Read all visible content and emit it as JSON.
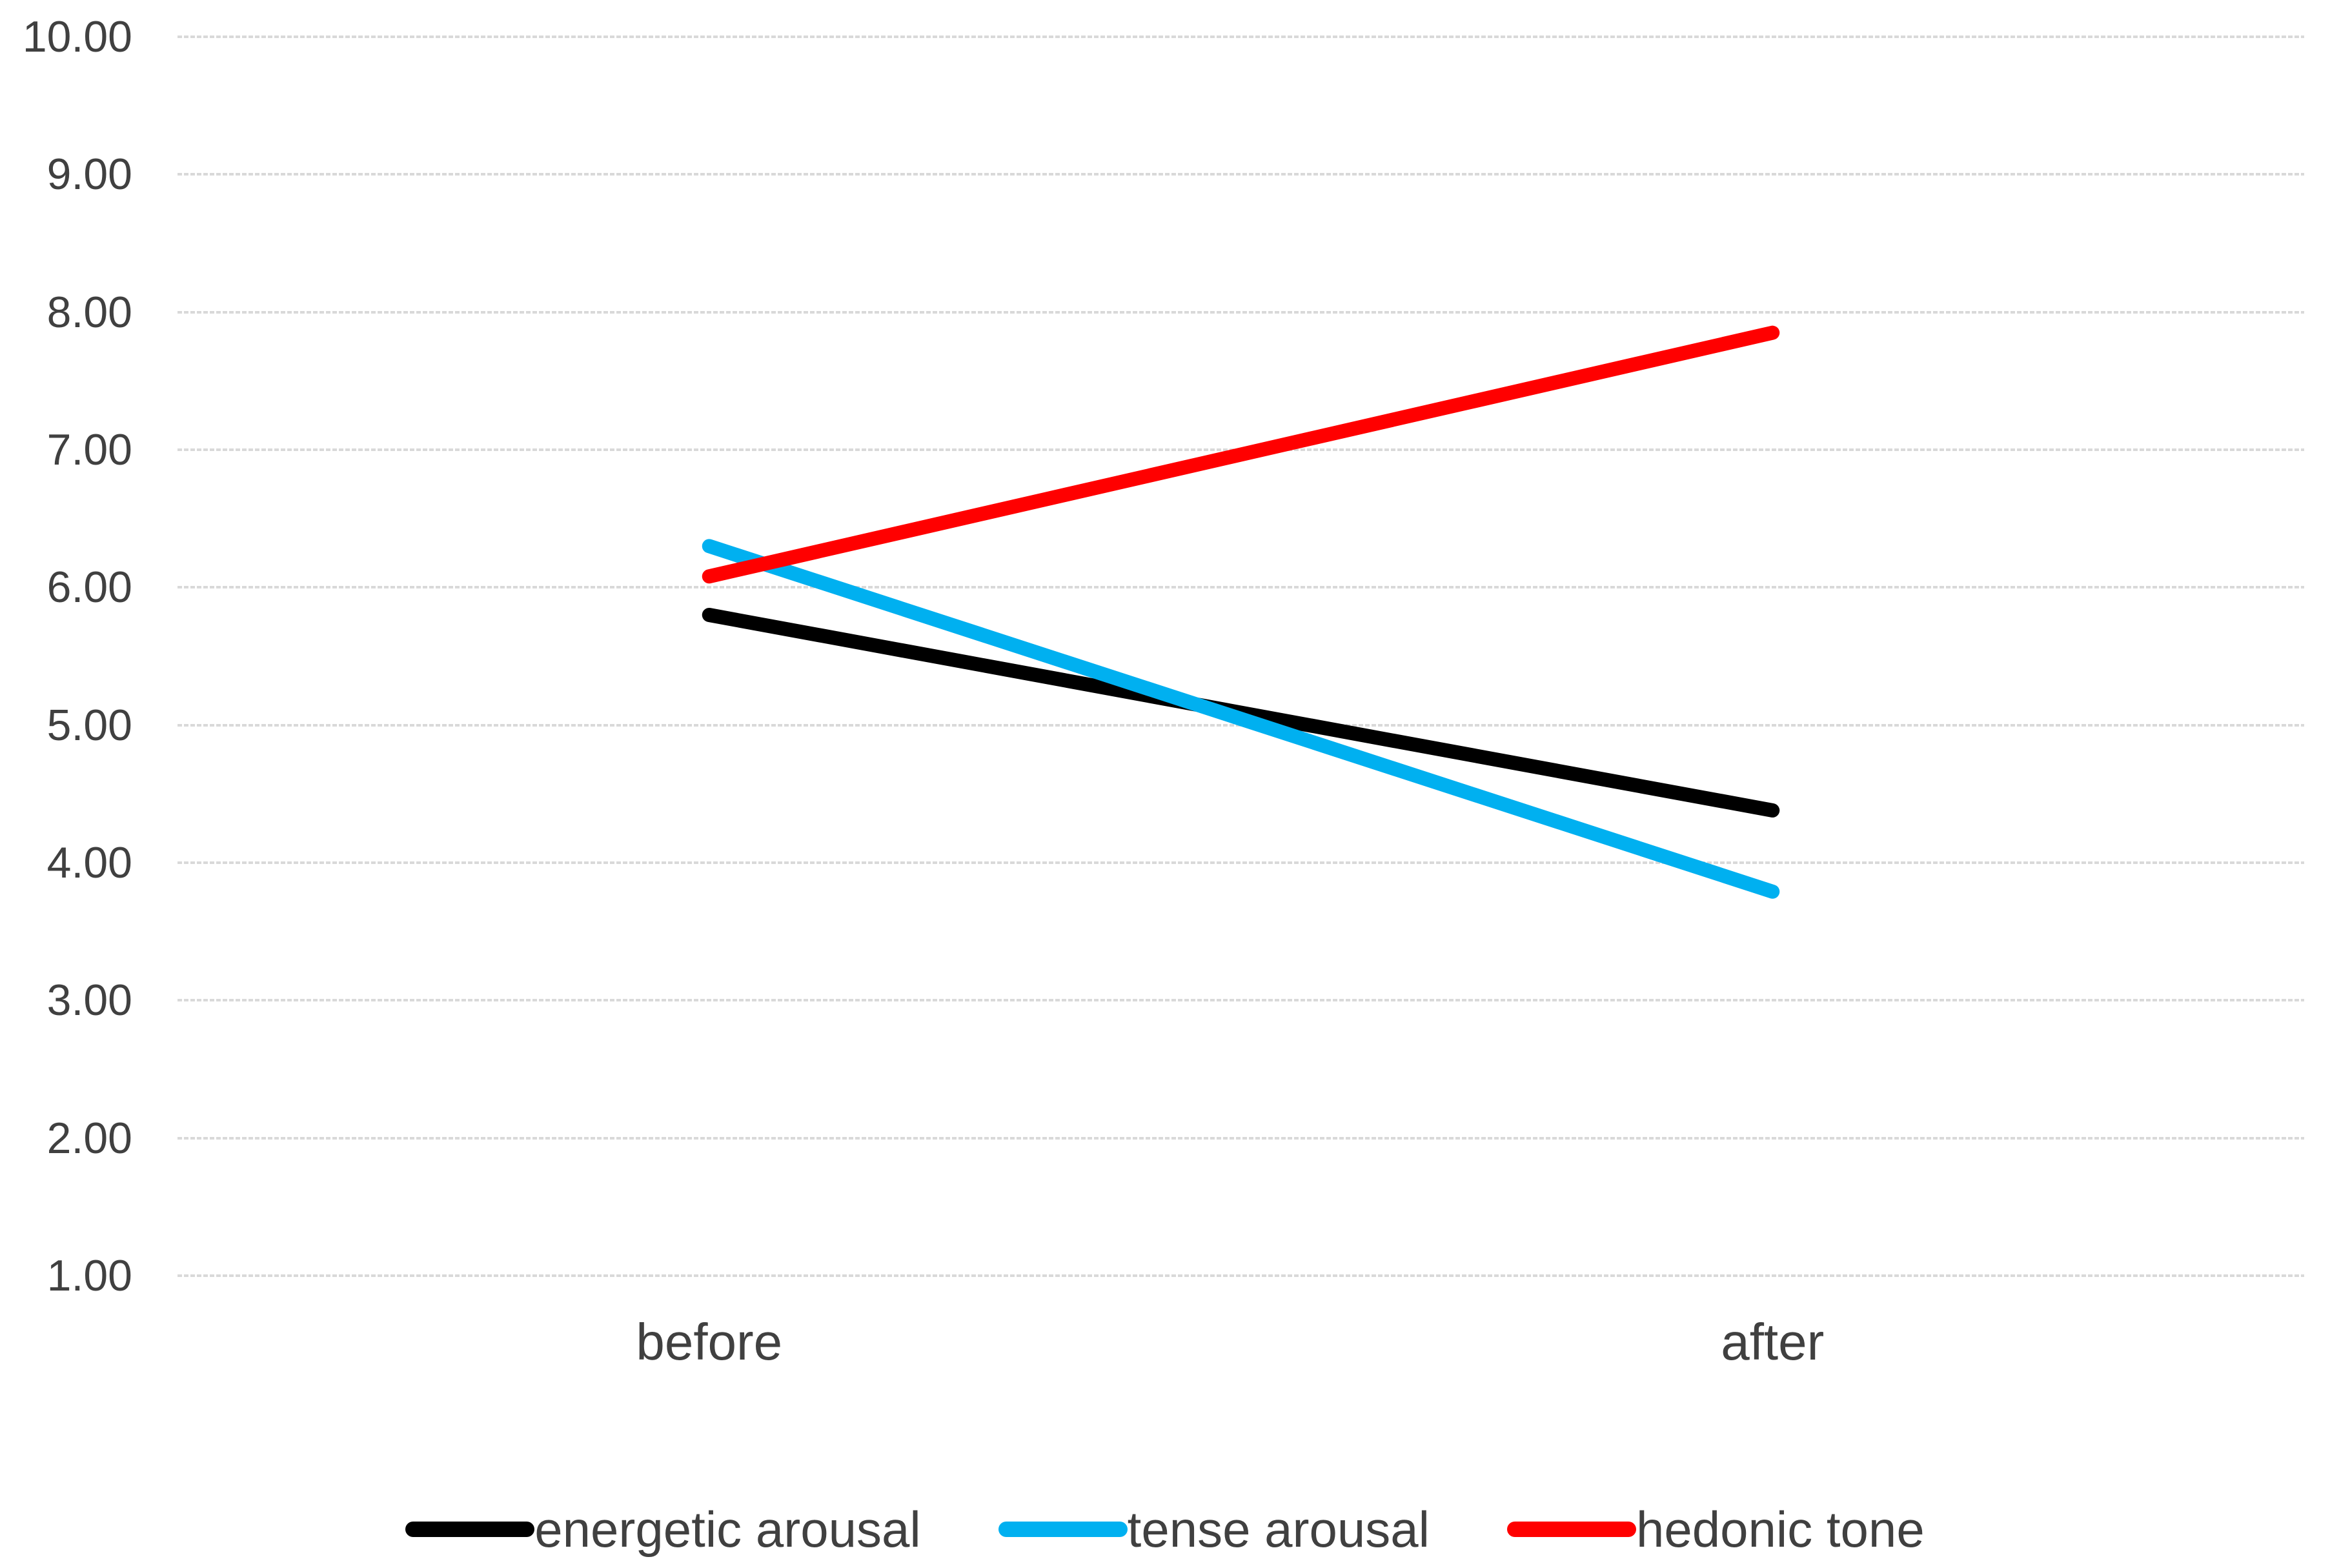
{
  "chart_data": {
    "type": "line",
    "categories": [
      "before",
      "after"
    ],
    "series": [
      {
        "name": "energetic arousal",
        "color": "#000000",
        "values": [
          5.8,
          4.38
        ]
      },
      {
        "name": "tense arousal",
        "color": "#00B0F0",
        "values": [
          6.3,
          3.79
        ]
      },
      {
        "name": "hedonic tone",
        "color": "#FF0000",
        "values": [
          6.08,
          7.85
        ]
      }
    ],
    "title": "",
    "xlabel": "",
    "ylabel": "",
    "ylim": [
      1.0,
      10.0
    ],
    "ytick_step": 1.0,
    "ytick_labels": [
      "10.00",
      "9.00",
      "8.00",
      "7.00",
      "6.00",
      "5.00",
      "4.00",
      "3.00",
      "2.00",
      "1.00"
    ],
    "grid": "horizontal-dotted",
    "legend_position": "bottom",
    "line_style": "thick-round-cap"
  },
  "colors": {
    "background": "#FFFFFF",
    "gridline": "#D9D9D9",
    "axis_text": "#404040"
  }
}
